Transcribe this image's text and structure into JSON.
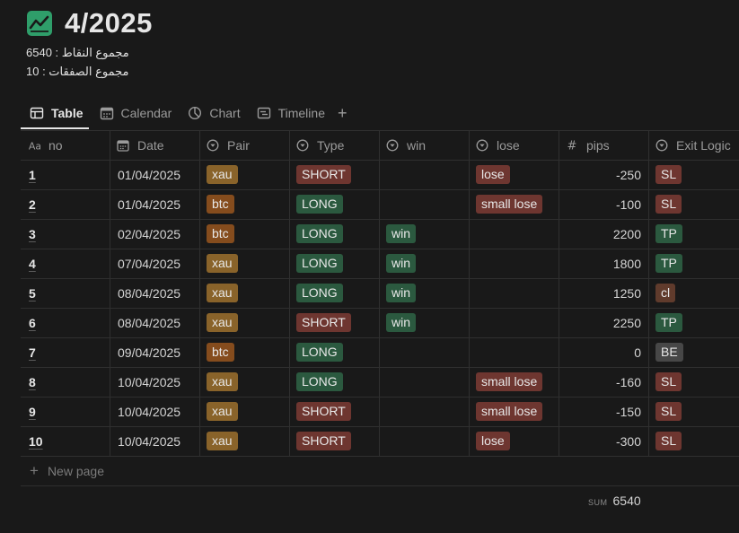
{
  "page": {
    "title": "4/2025",
    "description_line1": "مجموع النقاط : 6540",
    "description_line2": "مجموع الصفقات : 10"
  },
  "tabs": [
    {
      "label": "Table",
      "icon": "table-icon",
      "active": true
    },
    {
      "label": "Calendar",
      "icon": "calendar-icon",
      "active": false
    },
    {
      "label": "Chart",
      "icon": "chart-pie-icon",
      "active": false
    },
    {
      "label": "Timeline",
      "icon": "timeline-icon",
      "active": false
    }
  ],
  "columns": [
    {
      "label": "no",
      "icon": "title-aa-icon"
    },
    {
      "label": "Date",
      "icon": "calendar-icon"
    },
    {
      "label": "Pair",
      "icon": "select-icon"
    },
    {
      "label": "Type",
      "icon": "select-icon"
    },
    {
      "label": "win",
      "icon": "select-icon"
    },
    {
      "label": "lose",
      "icon": "select-icon"
    },
    {
      "label": "pips",
      "icon": "number-icon"
    },
    {
      "label": "Exit Logic",
      "icon": "select-icon"
    }
  ],
  "rows": [
    {
      "no": "1",
      "date": "01/04/2025",
      "pair": "xau",
      "type": "SHORT",
      "win": "",
      "lose": "lose",
      "pips": "-250",
      "exit": "SL"
    },
    {
      "no": "2",
      "date": "01/04/2025",
      "pair": "btc",
      "type": "LONG",
      "win": "",
      "lose": "small lose",
      "pips": "-100",
      "exit": "SL"
    },
    {
      "no": "3",
      "date": "02/04/2025",
      "pair": "btc",
      "type": "LONG",
      "win": "win",
      "lose": "",
      "pips": "2200",
      "exit": "TP"
    },
    {
      "no": "4",
      "date": "07/04/2025",
      "pair": "xau",
      "type": "LONG",
      "win": "win",
      "lose": "",
      "pips": "1800",
      "exit": "TP"
    },
    {
      "no": "5",
      "date": "08/04/2025",
      "pair": "xau",
      "type": "LONG",
      "win": "win",
      "lose": "",
      "pips": "1250",
      "exit": "cl"
    },
    {
      "no": "6",
      "date": "08/04/2025",
      "pair": "xau",
      "type": "SHORT",
      "win": "win",
      "lose": "",
      "pips": "2250",
      "exit": "TP"
    },
    {
      "no": "7",
      "date": "09/04/2025",
      "pair": "btc",
      "type": "LONG",
      "win": "",
      "lose": "",
      "pips": "0",
      "exit": "BE"
    },
    {
      "no": "8",
      "date": "10/04/2025",
      "pair": "xau",
      "type": "LONG",
      "win": "",
      "lose": "small lose",
      "pips": "-160",
      "exit": "SL"
    },
    {
      "no": "9",
      "date": "10/04/2025",
      "pair": "xau",
      "type": "SHORT",
      "win": "",
      "lose": "small lose",
      "pips": "-150",
      "exit": "SL"
    },
    {
      "no": "10",
      "date": "10/04/2025",
      "pair": "xau",
      "type": "SHORT",
      "win": "",
      "lose": "lose",
      "pips": "-300",
      "exit": "SL"
    }
  ],
  "tag_colors": {
    "xau": "#89632a",
    "btc": "#854c1d",
    "SHORT": "#6e3630",
    "LONG": "#2b593f",
    "win": "#2b593f",
    "lose": "#6e3630",
    "small lose": "#6e3630",
    "SL": "#6e3630",
    "TP": "#2b593f",
    "cl": "#603b2c",
    "BE": "#474747"
  },
  "new_page_label": "New page",
  "footer": {
    "sum_label": "SUM",
    "sum_value": "6540"
  },
  "accent": {
    "title_icon_color": "#2f9e6a"
  }
}
